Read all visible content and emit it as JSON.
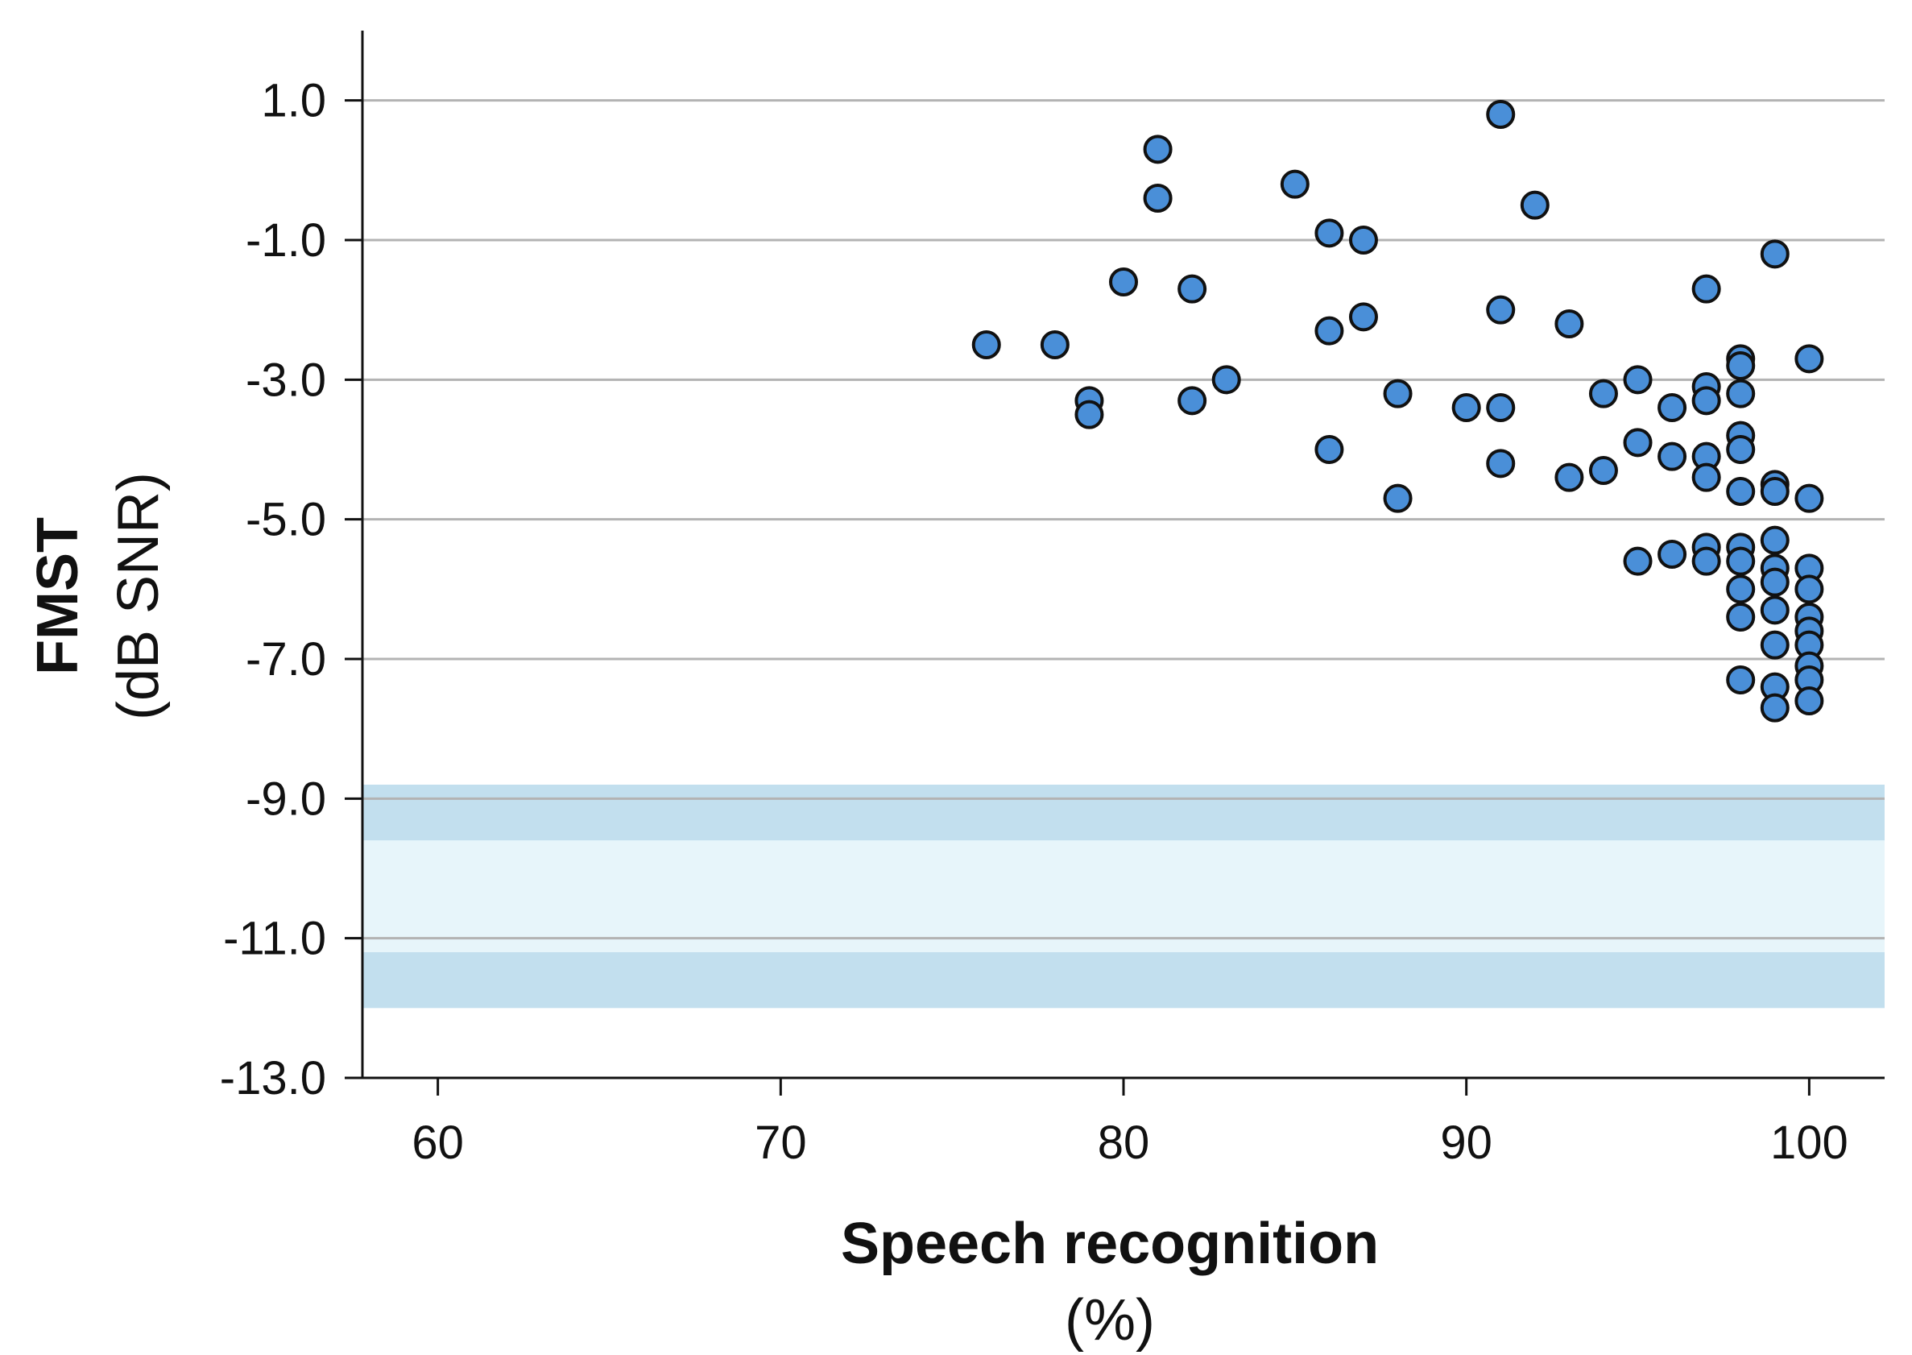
{
  "chart_data": {
    "type": "scatter",
    "xlabel": "Speech recognition",
    "xlabel_unit": "(%)",
    "ylabel": "FMST",
    "ylabel_unit": "(dB SNR)",
    "xlim": [
      57.8,
      102.2
    ],
    "ylim": [
      -13.0,
      2.0
    ],
    "x_ticks": [
      60,
      70,
      80,
      90,
      100
    ],
    "x_tick_labels": [
      "60",
      "70",
      "80",
      "90",
      "100"
    ],
    "y_ticks": [
      1.0,
      -1.0,
      -3.0,
      -5.0,
      -7.0,
      -9.0,
      -11.0,
      -13.0
    ],
    "y_tick_labels": [
      "1.0",
      "-1.0",
      "-3.0",
      "-5.0",
      "-7.0",
      "-9.0",
      "-11.0",
      "-13.0"
    ],
    "grid": "horizontal",
    "bands": [
      {
        "y0": -9.6,
        "y1": -8.8,
        "color": "#c2dfee"
      },
      {
        "y0": -11.2,
        "y1": -9.6,
        "color": "#e7f5fa"
      },
      {
        "y0": -12.0,
        "y1": -11.2,
        "color": "#c2dfee"
      }
    ],
    "marker_color": "#4a8fd8",
    "marker_edge_color": "#111111",
    "points": [
      {
        "x": 76,
        "y": -2.5
      },
      {
        "x": 78,
        "y": -2.5
      },
      {
        "x": 79,
        "y": -3.3
      },
      {
        "x": 79,
        "y": -3.5
      },
      {
        "x": 80,
        "y": -1.6
      },
      {
        "x": 81,
        "y": 0.3
      },
      {
        "x": 81,
        "y": -0.4
      },
      {
        "x": 82,
        "y": -1.7
      },
      {
        "x": 82,
        "y": -3.3
      },
      {
        "x": 83,
        "y": -3.0
      },
      {
        "x": 85,
        "y": -0.2
      },
      {
        "x": 86,
        "y": -0.9
      },
      {
        "x": 86,
        "y": -2.3
      },
      {
        "x": 86,
        "y": -4.0
      },
      {
        "x": 87,
        "y": -1.0
      },
      {
        "x": 87,
        "y": -2.1
      },
      {
        "x": 88,
        "y": -3.2
      },
      {
        "x": 88,
        "y": -4.7
      },
      {
        "x": 90,
        "y": -3.4
      },
      {
        "x": 91,
        "y": 0.8
      },
      {
        "x": 91,
        "y": -2.0
      },
      {
        "x": 91,
        "y": -3.4
      },
      {
        "x": 91,
        "y": -4.2
      },
      {
        "x": 92,
        "y": -0.5
      },
      {
        "x": 93,
        "y": -2.2
      },
      {
        "x": 93,
        "y": -4.4
      },
      {
        "x": 94,
        "y": -3.2
      },
      {
        "x": 94,
        "y": -4.3
      },
      {
        "x": 95,
        "y": -3.0
      },
      {
        "x": 95,
        "y": -3.9
      },
      {
        "x": 95,
        "y": -5.6
      },
      {
        "x": 96,
        "y": -3.4
      },
      {
        "x": 96,
        "y": -4.1
      },
      {
        "x": 96,
        "y": -5.5
      },
      {
        "x": 97,
        "y": -1.7
      },
      {
        "x": 97,
        "y": -3.1
      },
      {
        "x": 97,
        "y": -3.3
      },
      {
        "x": 97,
        "y": -4.1
      },
      {
        "x": 97,
        "y": -4.4
      },
      {
        "x": 97,
        "y": -5.4
      },
      {
        "x": 97,
        "y": -5.6
      },
      {
        "x": 98,
        "y": -2.7
      },
      {
        "x": 98,
        "y": -2.8
      },
      {
        "x": 98,
        "y": -3.2
      },
      {
        "x": 98,
        "y": -3.8
      },
      {
        "x": 98,
        "y": -4.0
      },
      {
        "x": 98,
        "y": -4.6
      },
      {
        "x": 98,
        "y": -5.4
      },
      {
        "x": 98,
        "y": -5.6
      },
      {
        "x": 98,
        "y": -6.0
      },
      {
        "x": 98,
        "y": -6.4
      },
      {
        "x": 98,
        "y": -7.3
      },
      {
        "x": 99,
        "y": -1.2
      },
      {
        "x": 99,
        "y": -4.5
      },
      {
        "x": 99,
        "y": -4.6
      },
      {
        "x": 99,
        "y": -5.3
      },
      {
        "x": 99,
        "y": -5.7
      },
      {
        "x": 99,
        "y": -5.9
      },
      {
        "x": 99,
        "y": -6.3
      },
      {
        "x": 99,
        "y": -6.8
      },
      {
        "x": 99,
        "y": -7.4
      },
      {
        "x": 99,
        "y": -7.7
      },
      {
        "x": 100,
        "y": -2.7
      },
      {
        "x": 100,
        "y": -4.7
      },
      {
        "x": 100,
        "y": -5.7
      },
      {
        "x": 100,
        "y": -6.0
      },
      {
        "x": 100,
        "y": -6.4
      },
      {
        "x": 100,
        "y": -6.6
      },
      {
        "x": 100,
        "y": -6.8
      },
      {
        "x": 100,
        "y": -7.1
      },
      {
        "x": 100,
        "y": -7.3
      },
      {
        "x": 100,
        "y": -7.6
      }
    ]
  }
}
